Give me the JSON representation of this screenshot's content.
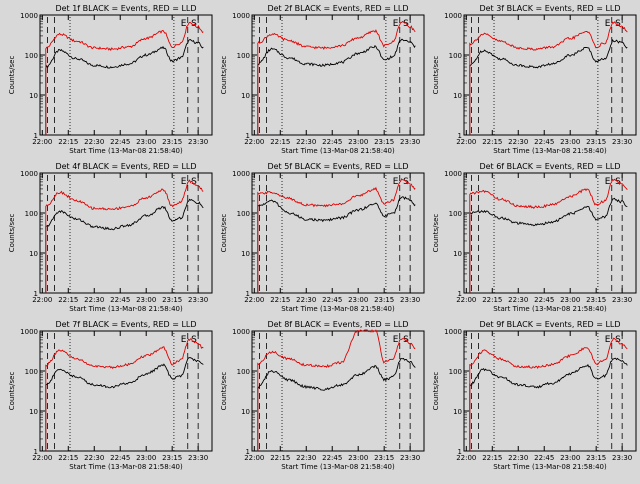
{
  "figure": {
    "panel_title_suffix": "BLACK = Events, RED = LLD",
    "xlabel": "Start Time (13-Mar-08 21:58:40)",
    "ylabel": "Counts/sec",
    "marker_labels": [
      "E",
      "S"
    ]
  },
  "colors": {
    "events": "#000000",
    "lld": "#e00000",
    "background": "#d8d8d8"
  },
  "chart_data": [
    {
      "type": "line",
      "title": "Det 1f",
      "x_ticks": [
        "22:00",
        "22:15",
        "22:30",
        "22:45",
        "23:00",
        "23:15",
        "23:30"
      ],
      "y_ticks": [
        "1",
        "10",
        "100",
        "1000"
      ],
      "yscale": "log",
      "ylim": [
        1,
        1000
      ],
      "xlim": [
        "21:58:40",
        "23:38"
      ],
      "ylabel": "Counts/sec",
      "xlabel": "Start Time (13-Mar-08 21:58:40)",
      "series": [
        {
          "name": "BLACK = Events",
          "x": [
            "22:02",
            "22:10",
            "22:20",
            "22:30",
            "22:40",
            "22:50",
            "23:00",
            "23:10",
            "23:15",
            "23:20",
            "23:25",
            "23:30",
            "23:33"
          ],
          "values": [
            50,
            130,
            80,
            55,
            50,
            60,
            100,
            150,
            70,
            85,
            230,
            200,
            150
          ]
        },
        {
          "name": "RED = LLD",
          "x": [
            "22:02",
            "22:10",
            "22:20",
            "22:30",
            "22:40",
            "22:50",
            "23:00",
            "23:10",
            "23:15",
            "23:20",
            "23:25",
            "23:30",
            "23:33"
          ],
          "values": [
            150,
            330,
            220,
            150,
            140,
            160,
            260,
            390,
            160,
            200,
            650,
            500,
            380
          ]
        }
      ]
    },
    {
      "type": "line",
      "title": "Det 2f",
      "x_ticks": [
        "22:00",
        "22:15",
        "22:30",
        "22:45",
        "23:00",
        "23:15",
        "23:30"
      ],
      "y_ticks": [
        "1",
        "10",
        "100",
        "1000"
      ],
      "yscale": "log",
      "ylim": [
        1,
        1000
      ],
      "xlim": [
        "21:58:40",
        "23:38"
      ],
      "ylabel": "Counts/sec",
      "xlabel": "Start Time (13-Mar-08 21:58:40)",
      "series": [
        {
          "name": "BLACK = Events",
          "x": [
            "22:02",
            "22:10",
            "22:20",
            "22:30",
            "22:40",
            "22:50",
            "23:00",
            "23:10",
            "23:15",
            "23:20",
            "23:25",
            "23:30",
            "23:33"
          ],
          "values": [
            60,
            140,
            85,
            60,
            55,
            65,
            110,
            160,
            75,
            90,
            240,
            210,
            160
          ]
        },
        {
          "name": "RED = LLD",
          "x": [
            "22:02",
            "22:10",
            "22:20",
            "22:30",
            "22:40",
            "22:50",
            "23:00",
            "23:10",
            "23:15",
            "23:20",
            "23:25",
            "23:30",
            "23:33"
          ],
          "values": [
            200,
            330,
            230,
            160,
            150,
            170,
            270,
            400,
            170,
            210,
            680,
            520,
            390
          ]
        }
      ]
    },
    {
      "type": "line",
      "title": "Det 3f",
      "x_ticks": [
        "22:00",
        "22:15",
        "22:30",
        "22:45",
        "23:00",
        "23:15",
        "23:30"
      ],
      "y_ticks": [
        "1",
        "10",
        "100",
        "1000"
      ],
      "yscale": "log",
      "ylim": [
        1,
        1000
      ],
      "xlim": [
        "21:58:40",
        "23:38"
      ],
      "ylabel": "Counts/sec",
      "xlabel": "Start Time (13-Mar-08 21:58:40)",
      "series": [
        {
          "name": "BLACK = Events",
          "x": [
            "22:02",
            "22:10",
            "22:20",
            "22:30",
            "22:40",
            "22:50",
            "23:00",
            "23:10",
            "23:15",
            "23:20",
            "23:25",
            "23:30",
            "23:33"
          ],
          "values": [
            55,
            130,
            80,
            55,
            50,
            60,
            100,
            150,
            70,
            80,
            230,
            200,
            150
          ]
        },
        {
          "name": "RED = LLD",
          "x": [
            "22:02",
            "22:10",
            "22:20",
            "22:30",
            "22:40",
            "22:50",
            "23:00",
            "23:10",
            "23:15",
            "23:20",
            "23:25",
            "23:30",
            "23:33"
          ],
          "values": [
            190,
            330,
            220,
            150,
            140,
            160,
            260,
            390,
            160,
            200,
            650,
            500,
            380
          ]
        }
      ]
    },
    {
      "type": "line",
      "title": "Det 4f",
      "x_ticks": [
        "22:00",
        "22:15",
        "22:30",
        "22:45",
        "23:00",
        "23:15",
        "23:30"
      ],
      "y_ticks": [
        "1",
        "10",
        "100",
        "1000"
      ],
      "yscale": "log",
      "ylim": [
        1,
        1000
      ],
      "xlim": [
        "21:58:40",
        "23:38"
      ],
      "ylabel": "Counts/sec",
      "xlabel": "Start Time (13-Mar-08 21:58:40)",
      "series": [
        {
          "name": "BLACK = Events",
          "x": [
            "22:02",
            "22:10",
            "22:20",
            "22:30",
            "22:40",
            "22:50",
            "23:00",
            "23:10",
            "23:15",
            "23:20",
            "23:25",
            "23:30",
            "23:33"
          ],
          "values": [
            45,
            110,
            70,
            45,
            40,
            50,
            85,
            140,
            65,
            75,
            210,
            180,
            140
          ]
        },
        {
          "name": "RED = LLD",
          "x": [
            "22:02",
            "22:10",
            "22:20",
            "22:30",
            "22:40",
            "22:50",
            "23:00",
            "23:10",
            "23:15",
            "23:20",
            "23:25",
            "23:30",
            "23:33"
          ],
          "values": [
            150,
            330,
            200,
            130,
            125,
            145,
            240,
            380,
            150,
            190,
            620,
            480,
            360
          ]
        }
      ]
    },
    {
      "type": "line",
      "title": "Det 5f",
      "x_ticks": [
        "22:00",
        "22:15",
        "22:30",
        "22:45",
        "23:00",
        "23:15",
        "23:30"
      ],
      "y_ticks": [
        "1",
        "10",
        "100",
        "1000"
      ],
      "yscale": "log",
      "ylim": [
        1,
        1000
      ],
      "xlim": [
        "21:58:40",
        "23:38"
      ],
      "ylabel": "Counts/sec",
      "xlabel": "Start Time (13-Mar-08 21:58:40)",
      "series": [
        {
          "name": "BLACK = Events",
          "x": [
            "22:02",
            "22:10",
            "22:20",
            "22:30",
            "22:40",
            "22:50",
            "23:00",
            "23:10",
            "23:15",
            "23:20",
            "23:25",
            "23:30",
            "23:33"
          ],
          "values": [
            150,
            200,
            100,
            70,
            65,
            75,
            120,
            170,
            85,
            95,
            250,
            210,
            160
          ]
        },
        {
          "name": "RED = LLD",
          "x": [
            "22:02",
            "22:10",
            "22:20",
            "22:30",
            "22:40",
            "22:50",
            "23:00",
            "23:10",
            "23:15",
            "23:20",
            "23:25",
            "23:30",
            "23:33"
          ],
          "values": [
            300,
            330,
            230,
            160,
            150,
            170,
            270,
            400,
            170,
            210,
            680,
            520,
            390
          ]
        }
      ]
    },
    {
      "type": "line",
      "title": "Det 6f",
      "x_ticks": [
        "22:00",
        "22:15",
        "22:30",
        "22:45",
        "23:00",
        "23:15",
        "23:30"
      ],
      "y_ticks": [
        "1",
        "10",
        "100",
        "1000"
      ],
      "yscale": "log",
      "ylim": [
        1,
        1000
      ],
      "xlim": [
        "21:58:40",
        "23:38"
      ],
      "ylabel": "Counts/sec",
      "xlabel": "Start Time (13-Mar-08 21:58:40)",
      "series": [
        {
          "name": "BLACK = Events",
          "x": [
            "22:02",
            "22:10",
            "22:20",
            "22:30",
            "22:40",
            "22:50",
            "23:00",
            "23:10",
            "23:15",
            "23:20",
            "23:25",
            "23:30",
            "23:33"
          ],
          "values": [
            100,
            110,
            75,
            55,
            50,
            60,
            95,
            140,
            70,
            80,
            220,
            190,
            150
          ]
        },
        {
          "name": "RED = LLD",
          "x": [
            "22:02",
            "22:10",
            "22:20",
            "22:30",
            "22:40",
            "22:50",
            "23:00",
            "23:10",
            "23:15",
            "23:20",
            "23:25",
            "23:30",
            "23:33"
          ],
          "values": [
            300,
            350,
            220,
            150,
            140,
            160,
            260,
            390,
            160,
            200,
            700,
            520,
            400
          ]
        }
      ]
    },
    {
      "type": "line",
      "title": "Det 7f",
      "x_ticks": [
        "22:00",
        "22:15",
        "22:30",
        "22:45",
        "23:00",
        "23:15",
        "23:30"
      ],
      "y_ticks": [
        "1",
        "10",
        "100",
        "1000"
      ],
      "yscale": "log",
      "ylim": [
        1,
        1000
      ],
      "xlim": [
        "21:58:40",
        "23:38"
      ],
      "ylabel": "Counts/sec",
      "xlabel": "Start Time (13-Mar-08 21:58:40)",
      "series": [
        {
          "name": "BLACK = Events",
          "x": [
            "22:02",
            "22:10",
            "22:20",
            "22:30",
            "22:40",
            "22:50",
            "23:00",
            "23:10",
            "23:15",
            "23:20",
            "23:25",
            "23:30",
            "23:33"
          ],
          "values": [
            45,
            110,
            70,
            45,
            40,
            50,
            85,
            140,
            65,
            75,
            210,
            180,
            140
          ]
        },
        {
          "name": "RED = LLD",
          "x": [
            "22:02",
            "22:10",
            "22:20",
            "22:30",
            "22:40",
            "22:50",
            "23:00",
            "23:10",
            "23:15",
            "23:20",
            "23:25",
            "23:30",
            "23:33"
          ],
          "values": [
            140,
            320,
            200,
            130,
            125,
            145,
            240,
            380,
            150,
            190,
            620,
            480,
            360
          ]
        }
      ]
    },
    {
      "type": "line",
      "title": "Det 8f",
      "x_ticks": [
        "22:00",
        "22:15",
        "22:30",
        "22:45",
        "23:00",
        "23:15",
        "23:30"
      ],
      "y_ticks": [
        "1",
        "10",
        "100",
        "1000"
      ],
      "yscale": "log",
      "ylim": [
        1,
        1000
      ],
      "xlim": [
        "21:58:40",
        "23:38"
      ],
      "ylabel": "Counts/sec",
      "xlabel": "Start Time (13-Mar-08 21:58:40)",
      "series": [
        {
          "name": "BLACK = Events",
          "x": [
            "22:02",
            "22:10",
            "22:20",
            "22:30",
            "22:40",
            "22:50",
            "23:00",
            "23:10",
            "23:15",
            "23:20",
            "23:25",
            "23:30",
            "23:33"
          ],
          "values": [
            40,
            100,
            60,
            40,
            35,
            45,
            80,
            130,
            60,
            70,
            200,
            170,
            130
          ]
        },
        {
          "name": "RED = LLD",
          "x": [
            "22:02",
            "22:10",
            "22:20",
            "22:30",
            "22:40",
            "22:50",
            "23:00",
            "23:10",
            "23:15",
            "23:20",
            "23:25",
            "23:30",
            "23:33"
          ],
          "values": [
            150,
            300,
            200,
            140,
            130,
            160,
            1000,
            1000,
            170,
            200,
            650,
            500,
            380
          ]
        }
      ]
    },
    {
      "type": "line",
      "title": "Det 9f",
      "x_ticks": [
        "22:00",
        "22:15",
        "22:30",
        "22:45",
        "23:00",
        "23:15",
        "23:30"
      ],
      "y_ticks": [
        "1",
        "10",
        "100",
        "1000"
      ],
      "yscale": "log",
      "ylim": [
        1,
        1000
      ],
      "xlim": [
        "21:58:40",
        "23:38"
      ],
      "ylabel": "Counts/sec",
      "xlabel": "Start Time (13-Mar-08 21:58:40)",
      "series": [
        {
          "name": "BLACK = Events",
          "x": [
            "22:02",
            "22:10",
            "22:20",
            "22:30",
            "22:40",
            "22:50",
            "23:00",
            "23:10",
            "23:15",
            "23:20",
            "23:25",
            "23:30",
            "23:33"
          ],
          "values": [
            45,
            110,
            70,
            45,
            40,
            50,
            85,
            140,
            65,
            75,
            210,
            180,
            140
          ]
        },
        {
          "name": "RED = LLD",
          "x": [
            "22:02",
            "22:10",
            "22:20",
            "22:30",
            "22:40",
            "22:50",
            "23:00",
            "23:10",
            "23:15",
            "23:20",
            "23:25",
            "23:30",
            "23:33"
          ],
          "values": [
            140,
            320,
            200,
            130,
            125,
            145,
            240,
            380,
            150,
            190,
            620,
            480,
            360
          ]
        }
      ]
    }
  ]
}
